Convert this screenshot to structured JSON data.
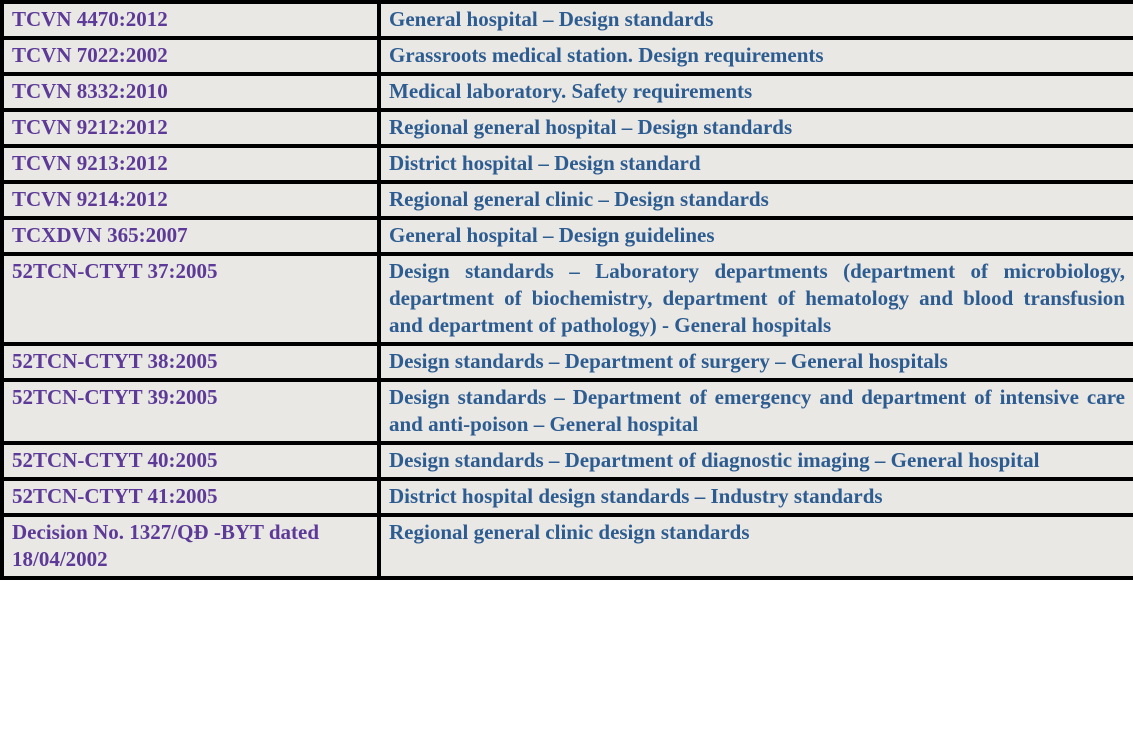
{
  "table": {
    "description": "List of hospital and medical facility design standards",
    "columns": [
      "standard_code",
      "standard_title"
    ],
    "rows": [
      {
        "code": "TCVN 4470:2012",
        "description": "General hospital – Design standards"
      },
      {
        "code": "TCVN 7022:2002",
        "description": "Grassroots medical station. Design requirements"
      },
      {
        "code": "TCVN 8332:2010",
        "description": "Medical laboratory. Safety requirements"
      },
      {
        "code": "TCVN 9212:2012",
        "description": "Regional general hospital – Design standards"
      },
      {
        "code": "TCVN 9213:2012",
        "description": "District hospital – Design standard"
      },
      {
        "code": "TCVN 9214:2012",
        "description": "Regional general clinic – Design standards"
      },
      {
        "code": "TCXDVN 365:2007",
        "description": "General hospital – Design guidelines"
      },
      {
        "code": "52TCN-CTYT 37:2005",
        "description": "Design standards – Laboratory departments (department of microbiology, department of biochemistry, department of hematology and blood transfusion and department of pathology) - General hospitals"
      },
      {
        "code": "52TCN-CTYT 38:2005",
        "description": "Design standards – Department of surgery – General hospitals"
      },
      {
        "code": "52TCN-CTYT 39:2005",
        "description": "Design standards – Department of emergency and department of intensive care and anti-poison – General hospital"
      },
      {
        "code": "52TCN-CTYT 40:2005",
        "description": "Design standards – Department of diagnostic imaging – General hospital"
      },
      {
        "code": "52TCN-CTYT 41:2005",
        "description": "District hospital design standards – Industry standards"
      },
      {
        "code": "Decision No. 1327/QĐ -BYT dated 18/04/2002",
        "description": "Regional general clinic design standards"
      }
    ]
  },
  "colors": {
    "code_text": "#5d3a97",
    "description_text": "#2d5c90",
    "cell_background": "#e9e8e5",
    "border": "#000000"
  }
}
